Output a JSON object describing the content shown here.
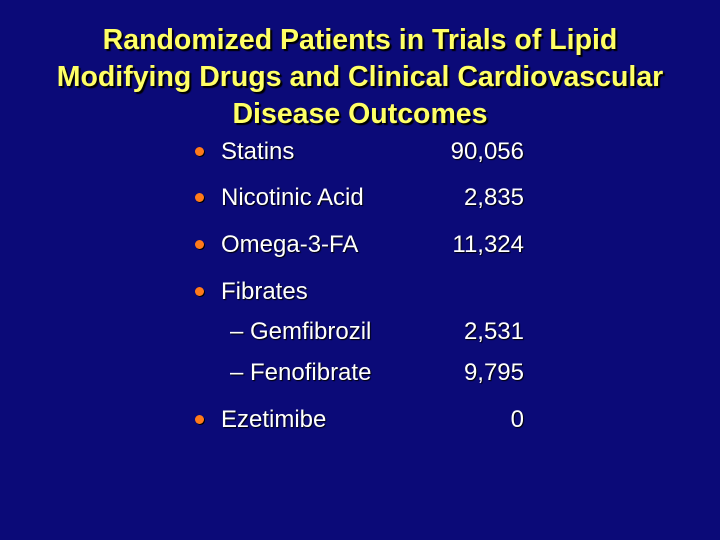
{
  "title": {
    "lines": [
      "Randomized Patients in Trials of Lipid",
      "Modifying Drugs and Clinical Cardiovascular",
      "Disease Outcomes"
    ],
    "color": "#ffff66"
  },
  "background_color": "#0b0a78",
  "bullet_color": "#ff7a1a",
  "items": [
    {
      "label": "Statins",
      "value": "90,056"
    },
    {
      "label": "Nicotinic Acid",
      "value": "2,835"
    },
    {
      "label": "Omega-3-FA",
      "value": "11,324"
    },
    {
      "label": "Fibrates",
      "value": ""
    },
    {
      "label": "– Gemfibrozil",
      "value": "2,531"
    },
    {
      "label": "– Fenofibrate",
      "value": "9,795"
    },
    {
      "label": "Ezetimibe",
      "value": "0"
    }
  ]
}
